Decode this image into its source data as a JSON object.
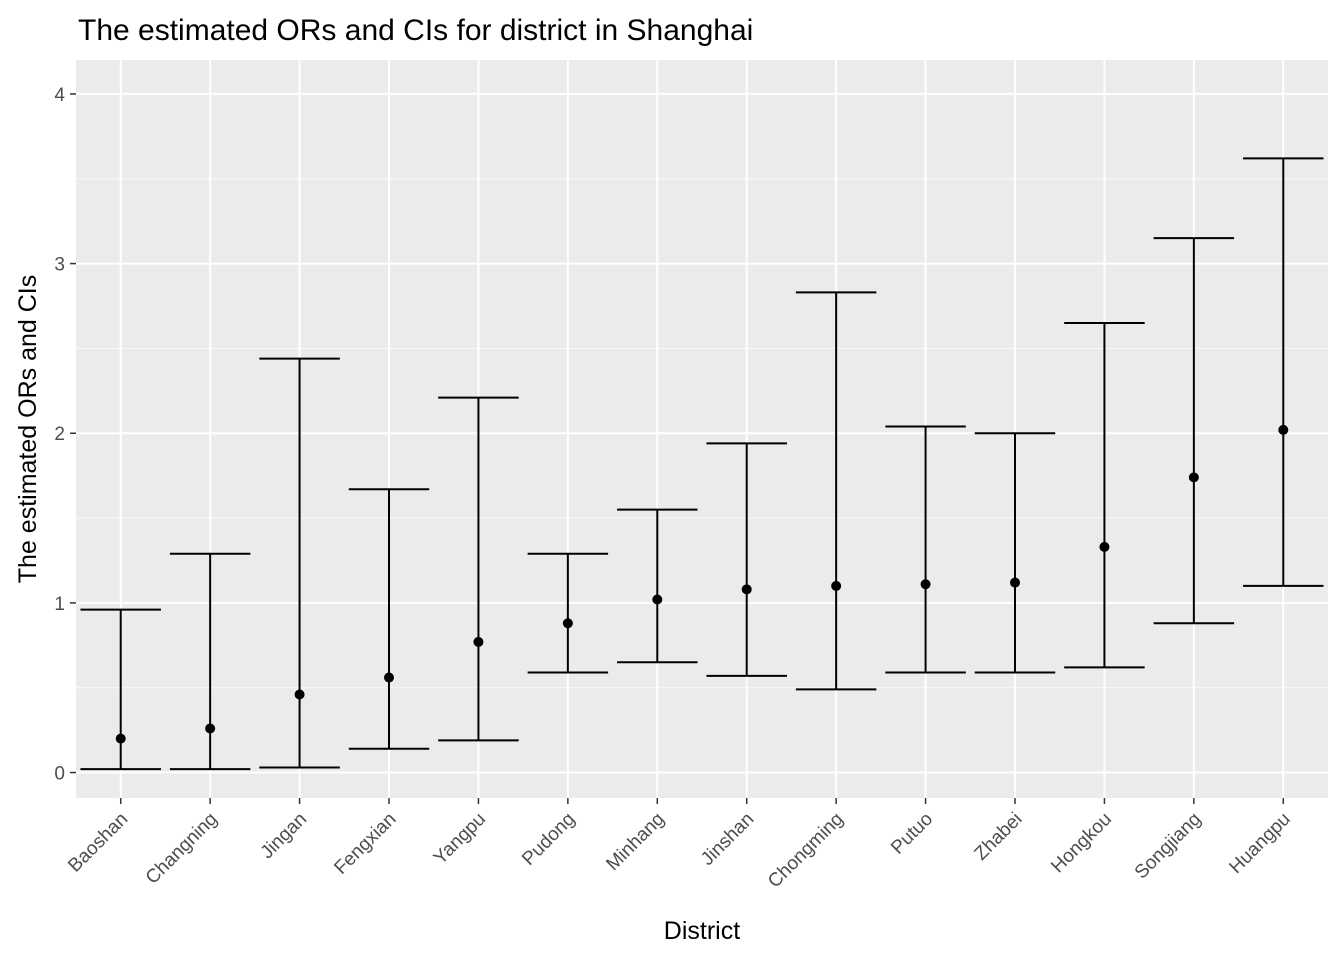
{
  "chart_data": {
    "type": "errorbar",
    "title": "The estimated ORs and CIs for district in Shanghai",
    "xlabel": "District",
    "ylabel": "The estimated ORs and CIs",
    "ylim": [
      -0.15,
      4.2
    ],
    "yticks": [
      0,
      1,
      2,
      3,
      4
    ],
    "grid": true,
    "x_tick_label_rotation_deg": 45,
    "categories": [
      "Baoshan",
      "Changning",
      "Jingan",
      "Fengxian",
      "Yangpu",
      "Pudong",
      "Minhang",
      "Jinshan",
      "Chongming",
      "Putuo",
      "Zhabei",
      "Hongkou",
      "Songjiang",
      "Huangpu"
    ],
    "estimate": [
      0.2,
      0.26,
      0.46,
      0.56,
      0.77,
      0.88,
      1.02,
      1.08,
      1.1,
      1.11,
      1.12,
      1.33,
      1.74,
      2.02
    ],
    "lower": [
      0.02,
      0.02,
      0.03,
      0.14,
      0.19,
      0.59,
      0.65,
      0.57,
      0.49,
      0.59,
      0.59,
      0.62,
      0.88,
      1.1
    ],
    "upper": [
      0.96,
      1.29,
      2.44,
      1.67,
      2.21,
      1.29,
      1.55,
      1.94,
      2.83,
      2.04,
      2.0,
      2.65,
      3.15,
      3.62
    ]
  }
}
